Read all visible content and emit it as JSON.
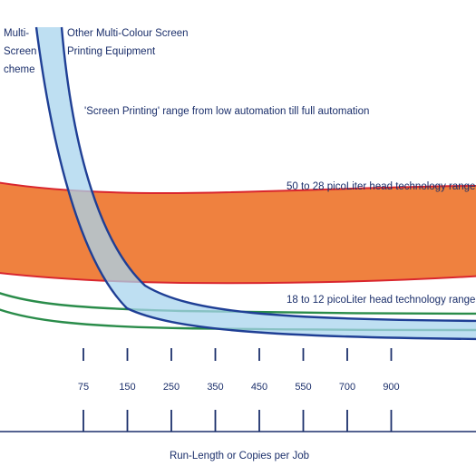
{
  "chart_data": {
    "type": "line",
    "xlabel": "Run-Length or Copies per Job",
    "ylabel": "",
    "categories": [
      "75",
      "150",
      "250",
      "350",
      "450",
      "550",
      "700",
      "900"
    ],
    "ticks": [
      {
        "label": "75"
      },
      {
        "label": "150"
      },
      {
        "label": "250"
      },
      {
        "label": "350"
      },
      {
        "label": "450"
      },
      {
        "label": "550"
      },
      {
        "label": "700"
      },
      {
        "label": "900"
      }
    ],
    "series": [
      {
        "name": "Multi-Screen Scheme",
        "label_lines": [
          "Multi-",
          "Screen",
          "cheme"
        ],
        "color": "#1f3f95"
      },
      {
        "name": "Other Multi-Colour Screen Printing Equipment",
        "label_lines": [
          "Other Multi-Colour Screen",
          "Printing Equipment"
        ],
        "band_color": "#a8d4ee",
        "color": "#1f3f95"
      },
      {
        "name": "50 to 28 picoLiter head technology range",
        "band_color": "#ee7a35",
        "border_color": "#d9262e"
      },
      {
        "name": "18 to 12 picoLiter head technology range",
        "color": "#2a8c4a"
      }
    ],
    "annotations": [
      {
        "text": "'Screen Printing' range from low automation till full automation"
      }
    ]
  }
}
